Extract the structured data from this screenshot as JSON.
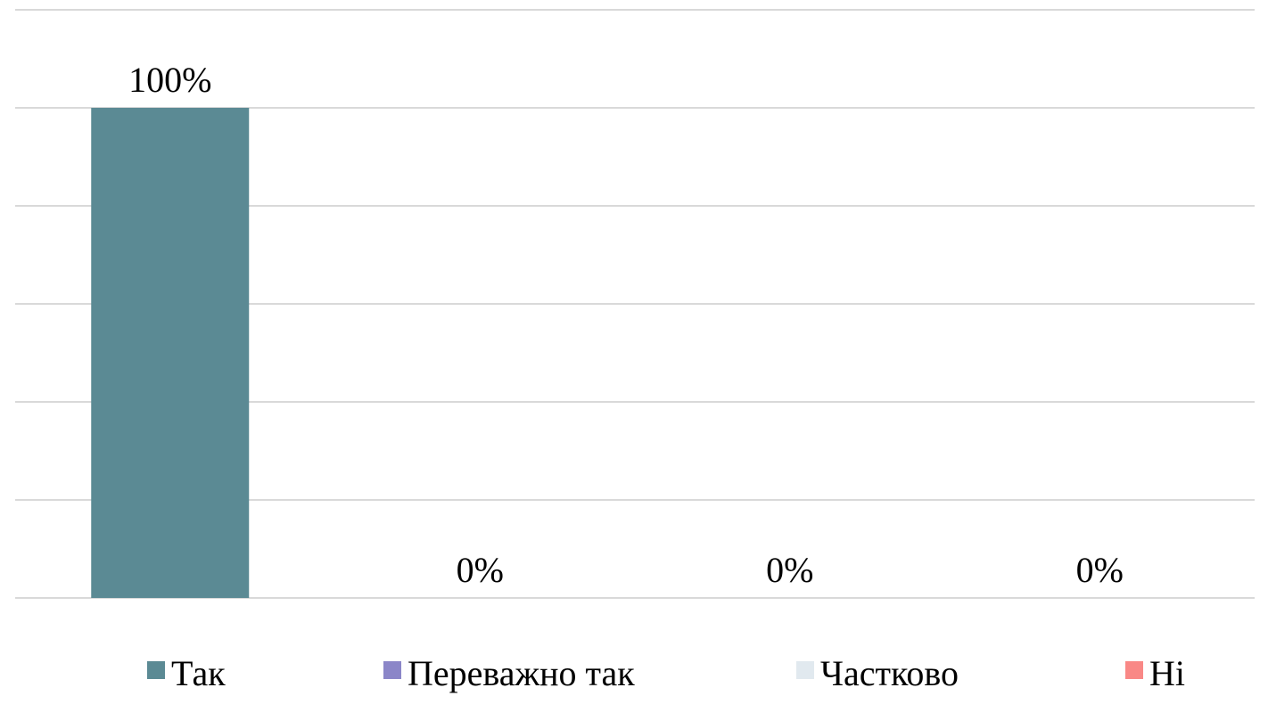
{
  "chart_data": {
    "type": "bar",
    "categories": [
      "Так",
      "Переважно так",
      "Частково",
      "Ні"
    ],
    "values": [
      100,
      0,
      0,
      0
    ],
    "data_labels": [
      "100%",
      "0%",
      "0%",
      "0%"
    ],
    "colors": [
      "#5b8a94",
      "#8b86c8",
      "#e1e9ef",
      "#f98886"
    ],
    "ylim": [
      0,
      120
    ],
    "gridline_step": 20,
    "grid": true,
    "legend_position": "bottom"
  }
}
